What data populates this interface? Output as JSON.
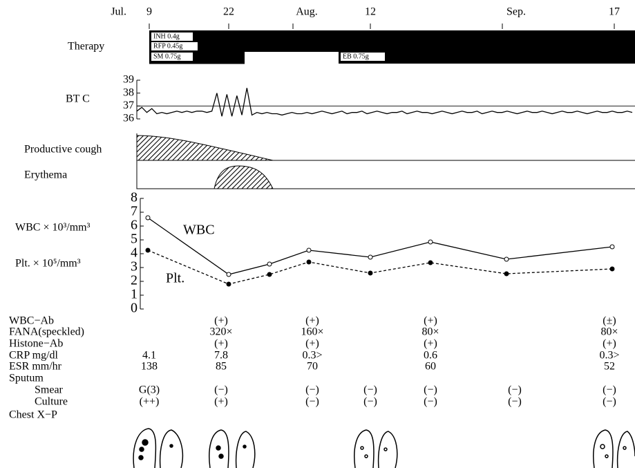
{
  "timeline": [
    "Jul.",
    "9",
    "22",
    "Aug.",
    "12",
    "Sep.",
    "17"
  ],
  "therapy": {
    "label": "Therapy",
    "drugs": [
      "INH 0.4g",
      "RFP 0.45g",
      "SM 0.75g",
      "EB 0.75g"
    ]
  },
  "symptoms": [
    "Productive cough",
    "Erythema"
  ],
  "chart_data": [
    {
      "type": "line",
      "ylabel": "BT C",
      "ylim": [
        36,
        39
      ],
      "yticks": [
        36,
        37,
        38,
        39
      ],
      "reference": 37,
      "series": [
        {
          "name": null,
          "color": "#000000",
          "values": [
            36.6,
            36.9,
            36.5,
            36.8,
            36.4,
            36.5,
            36.4,
            36.5,
            36.6,
            36.5,
            36.6,
            36.5,
            36.6,
            36.6,
            36.5,
            36.6,
            38,
            36.2,
            37.9,
            36.2,
            37.8,
            36.3,
            38.4,
            36.3,
            36.5,
            36.4,
            36.5,
            36.4,
            36.4,
            36.3,
            36.4,
            36.5,
            36.4,
            36.4,
            36.5,
            36.4,
            36.5,
            36.6,
            36.5,
            36.4,
            36.5,
            36.6,
            36.4,
            36.5,
            36.5,
            36.6,
            36.4,
            36.5,
            36.6,
            36.5,
            36.4,
            36.5,
            36.5,
            36.6,
            36.4,
            36.5,
            36.6,
            36.5,
            36.5,
            36.4,
            36.5,
            36.6,
            36.5,
            36.4,
            36.5,
            36.6,
            36.5,
            36.5,
            36.6,
            36.4,
            36.5,
            36.6,
            36.5,
            36.5,
            36.6,
            36.5,
            36.4,
            36.5,
            36.6,
            36.5,
            36.5,
            36.6,
            36.5,
            36.4,
            36.5,
            36.6,
            36.5,
            36.5,
            36.6,
            36.5,
            36.4,
            36.5,
            36.6,
            36.5,
            36.5,
            36.6,
            36.5,
            36.5,
            36.6,
            36.5
          ]
        }
      ]
    },
    {
      "type": "line",
      "ylabels": [
        "WBC × 10³/mm³",
        "Plt. × 10⁵/mm³"
      ],
      "ylim": [
        0,
        8
      ],
      "yticks": [
        0,
        1,
        2,
        3,
        4,
        5,
        6,
        7,
        8
      ],
      "categories": [
        null,
        null,
        null,
        null,
        null,
        null,
        null,
        null
      ],
      "series": [
        {
          "name": "WBC",
          "color": "#000000",
          "dash": false,
          "values": [
            6.6,
            2.5,
            3.25,
            4.25,
            3.75,
            4.85,
            3.6,
            4.5
          ]
        },
        {
          "name": "Plt.",
          "color": "#000000",
          "dash": true,
          "values": [
            4.25,
            1.8,
            2.5,
            3.4,
            2.6,
            3.35,
            2.55,
            2.9
          ]
        }
      ]
    }
  ],
  "table": {
    "rows": [
      {
        "label": "WBC−Ab",
        "cells": [
          null,
          "(+)",
          "(+)",
          null,
          "(+)",
          null,
          "(±)"
        ]
      },
      {
        "label": "FANA(speckled)",
        "cells": [
          null,
          "320×",
          "160×",
          null,
          "80×",
          null,
          "80×"
        ]
      },
      {
        "label": "Histone−Ab",
        "cells": [
          null,
          "(+)",
          "(+)",
          null,
          "(+)",
          null,
          "(+)"
        ]
      },
      {
        "label": "CRP mg/dl",
        "cells": [
          "4.1",
          "7.8",
          "0.3>",
          null,
          "0.6",
          null,
          "0.3>"
        ]
      },
      {
        "label": "ESR mm/hr",
        "cells": [
          "138",
          "85",
          "70",
          null,
          "60",
          null,
          "52"
        ]
      },
      {
        "label": "Sputum",
        "cells": [
          null,
          null,
          null,
          null,
          null,
          null,
          null
        ]
      },
      {
        "label": "Smear",
        "cells": [
          "G(3)",
          "(−)",
          "(−)",
          "(−)",
          "(−)",
          "(−)",
          "(−)"
        ]
      },
      {
        "label": "Culture",
        "cells": [
          "(++)",
          "(+)",
          "(−)",
          "(−)",
          "(−)",
          "(−)",
          "(−)"
        ]
      },
      {
        "label": "Chest X−P",
        "cells": [
          null,
          null,
          null,
          null,
          null,
          null,
          null
        ]
      }
    ]
  }
}
